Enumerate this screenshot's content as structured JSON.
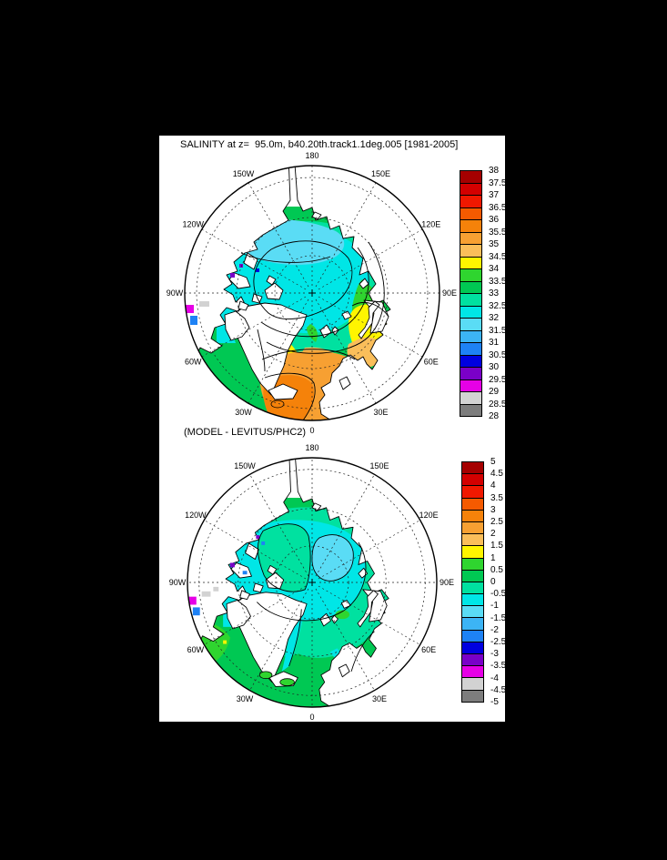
{
  "page_background": "#000000",
  "panel_background": "#ffffff",
  "panels": [
    {
      "title": "SALINITY at z=  95.0m, b40.20th.track1.1deg.005 [1981-2005]"
    },
    {
      "title": "(MODEL - LEVITUS/PHC2)"
    }
  ],
  "palette_top_to_bottom": [
    "#A50000",
    "#D30000",
    "#F01800",
    "#F55A00",
    "#F5820A",
    "#F7A032",
    "#FABE5A",
    "#FFF500",
    "#2FD52F",
    "#00C853",
    "#00E1A0",
    "#00E6E6",
    "#5ADCF5",
    "#3CB4F5",
    "#1E82F5",
    "#0000E0",
    "#7A00C8",
    "#E600E6",
    "#D2D2D2",
    "#7D7D7D"
  ],
  "colorbars": [
    {
      "tick_labels": [
        "38",
        "37.5",
        "37",
        "36.5",
        "36",
        "35.5",
        "35",
        "34.5",
        "34",
        "33.5",
        "33",
        "32.5",
        "32",
        "31.5",
        "31",
        "30.5",
        "30",
        "29.5",
        "29",
        "28.5",
        "28"
      ],
      "stipple_last_box": true
    },
    {
      "tick_labels": [
        "5",
        "4.5",
        "4",
        "3.5",
        "3",
        "2.5",
        "2",
        "1.5",
        "1",
        "0.5",
        "0",
        "-0.5",
        "-1",
        "-1.5",
        "-2",
        "-2.5",
        "-3",
        "-3.5",
        "-4",
        "-4.5",
        "-5"
      ],
      "stipple_last_box": true
    }
  ],
  "longitude_labels": [
    "180",
    "150E",
    "120E",
    "90E",
    "60E",
    "30E",
    "0",
    "30W",
    "60W",
    "90W",
    "120W",
    "150W"
  ],
  "chart_data": [
    {
      "type": "filled_contour_map",
      "projection": "polar_stereographic_north",
      "title": "SALINITY at z=  95.0m, b40.20th.track1.1deg.005 [1981-2005]",
      "field": "salinity at depth z = 95.0 m",
      "dataset": "b40.20th.track1.1deg.005",
      "period": "1981-2005",
      "levels": [
        28,
        28.5,
        29,
        29.5,
        30,
        30.5,
        31,
        31.5,
        32,
        32.5,
        33,
        33.5,
        34,
        34.5,
        35,
        35.5,
        36,
        36.5,
        37,
        37.5,
        38
      ],
      "palette_low_to_high": [
        "#7D7D7D",
        "#D2D2D2",
        "#E600E6",
        "#7A00C8",
        "#0000E0",
        "#1E82F5",
        "#3CB4F5",
        "#5ADCF5",
        "#00E6E6",
        "#00E1A0",
        "#00C853",
        "#2FD52F",
        "#FFF500",
        "#FABE5A",
        "#F7A032",
        "#F5820A",
        "#F55A00",
        "#F01800",
        "#D30000",
        "#A50000"
      ],
      "longitude_ring_labels": [
        "180",
        "150E",
        "120E",
        "90E",
        "60E",
        "30E",
        "0",
        "30W",
        "60W",
        "90W",
        "120W",
        "150W"
      ],
      "latitude_circles_deg": [
        80,
        70,
        60
      ],
      "grid": "dashed graticule, 30-degree meridians",
      "regions_approx": [
        {
          "area": "Beaufort/Chukchi patch",
          "value_range": "31-31.5"
        },
        {
          "area": "central Arctic basin",
          "value_range": "31.5-32.5"
        },
        {
          "area": "Siberian shelf and Fram Strait ring",
          "value_range": "32.5-34"
        },
        {
          "area": "Barents/Kara and SE Greenland band",
          "value_range": "34-34.5"
        },
        {
          "area": "Norwegian Sea",
          "value_range": "34.5-35.5"
        },
        {
          "area": "North Atlantic sector",
          "value_range": "35-36"
        },
        {
          "area": "Canadian Archipelago spots",
          "value_range": "28.5-30.5"
        },
        {
          "area": "Bering Sea patches",
          "value_range": "31.5-32.5"
        }
      ]
    },
    {
      "type": "filled_contour_map",
      "projection": "polar_stereographic_north",
      "title": "(MODEL - LEVITUS/PHC2)",
      "field": "salinity difference at 95.0 m, model minus Levitus/PHC2",
      "levels": [
        -5,
        -4.5,
        -4,
        -3.5,
        -3,
        -2.5,
        -2,
        -1.5,
        -1,
        -0.5,
        0,
        0.5,
        1,
        1.5,
        2,
        2.5,
        3,
        3.5,
        4,
        4.5,
        5
      ],
      "palette_low_to_high": [
        "#7D7D7D",
        "#D2D2D2",
        "#E600E6",
        "#7A00C8",
        "#0000E0",
        "#1E82F5",
        "#3CB4F5",
        "#5ADCF5",
        "#00E6E6",
        "#00E1A0",
        "#00C853",
        "#2FD52F",
        "#FFF500",
        "#FABE5A",
        "#F7A032",
        "#F5820A",
        "#F55A00",
        "#F01800",
        "#D30000",
        "#A50000"
      ],
      "longitude_ring_labels": [
        "180",
        "150E",
        "120E",
        "90E",
        "60E",
        "30E",
        "0",
        "30W",
        "60W",
        "90W",
        "120W",
        "150W"
      ],
      "latitude_circles_deg": [
        80,
        70,
        60
      ],
      "grid": "dashed graticule, 30-degree meridians",
      "regions_approx": [
        {
          "area": "North Atlantic / Nordic Seas",
          "value_range": "0 to 0.5"
        },
        {
          "area": "outer Arctic ring",
          "value_range": "-0.5 to 0"
        },
        {
          "area": "central Arctic",
          "value_range": "-1 to -0.5"
        },
        {
          "area": "East Siberian side oval",
          "value_range": "-1.5 to -1"
        },
        {
          "area": "Davis Strait / Labrador side",
          "value_range": "0.5 to 1"
        },
        {
          "area": "Canadian Archipelago spots",
          "value_range": "-4 to -2"
        }
      ]
    }
  ]
}
